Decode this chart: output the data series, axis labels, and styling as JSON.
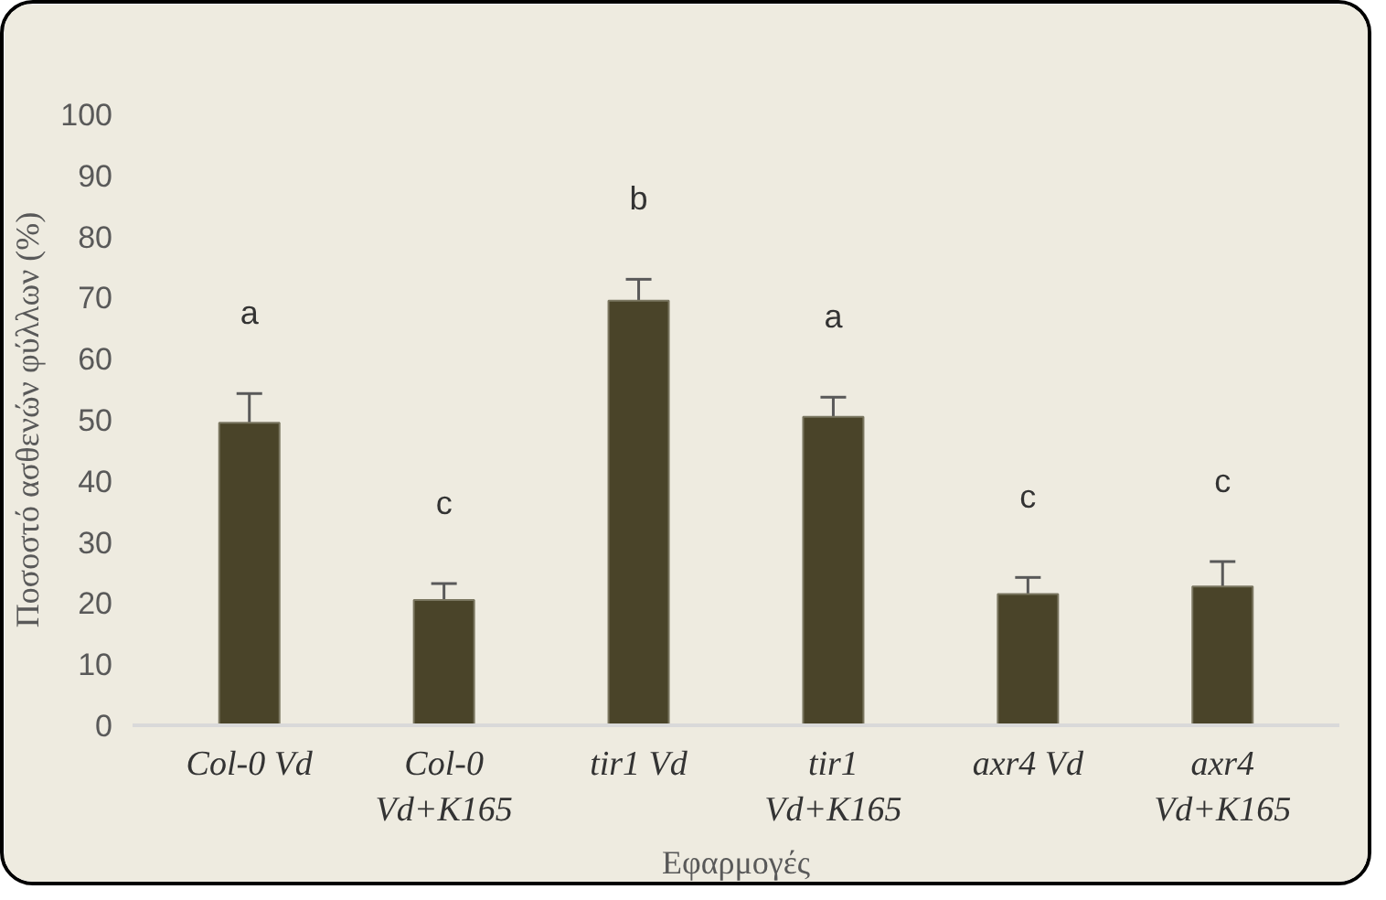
{
  "chart_data": {
    "type": "bar",
    "xlabel": "Εφαρμογές",
    "ylabel": "Ποσοστό ασθενών φύλλων (%)",
    "categories": [
      "Col-0 Vd",
      "Col-0\nVd+K165",
      "tir1 Vd",
      "tir1\nVd+K165",
      "axr4 Vd",
      "axr4\nVd+K165"
    ],
    "values": [
      49.5,
      20.5,
      69.5,
      50.5,
      21.5,
      22.7
    ],
    "errors": [
      4.8,
      2.7,
      3.5,
      3.2,
      2.7,
      4.1
    ],
    "color": "#4a4429",
    "ylim": [
      0,
      100
    ],
    "yticks": [
      0,
      10,
      20,
      30,
      40,
      50,
      60,
      70,
      80,
      90,
      100
    ],
    "grid": false,
    "annotations": [
      "a",
      "c",
      "b",
      "a",
      "c",
      "c"
    ]
  }
}
